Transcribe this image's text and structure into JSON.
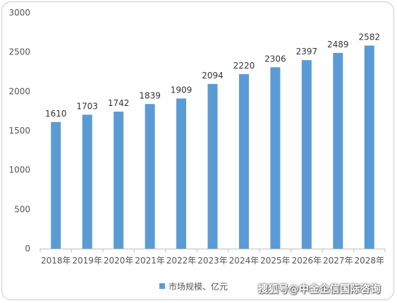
{
  "chart_data": {
    "type": "bar",
    "categories": [
      "2018年",
      "2019年",
      "2020年",
      "2021年",
      "2022年",
      "2023年",
      "2024年",
      "2025年",
      "2026年",
      "2027年",
      "2028年"
    ],
    "series": [
      {
        "name": "市场规模、亿元",
        "values": [
          1610,
          1703,
          1742,
          1839,
          1909,
          2094,
          2220,
          2306,
          2397,
          2489,
          2582
        ]
      }
    ],
    "yticks": [
      "0",
      "500",
      "1000",
      "1500",
      "2000",
      "2500",
      "3000"
    ],
    "ylim": [
      0,
      3000
    ],
    "legend_position": "bottom",
    "grid": false,
    "bar_color": "#5b9bd5"
  },
  "watermark": "搜狐号@中金企信国际咨询"
}
